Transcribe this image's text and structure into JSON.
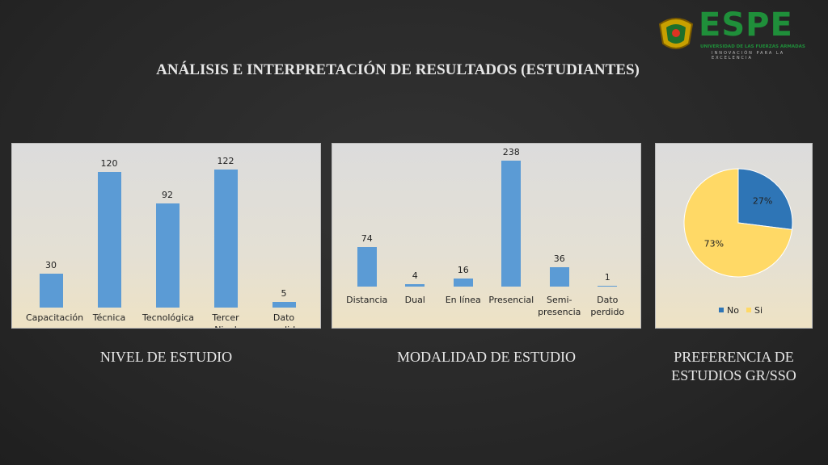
{
  "title": "ANÁLISIS E INTERPRETACIÓN DE RESULTADOS (ESTUDIANTES)",
  "logo": {
    "name": "ESPE",
    "subtitle": "UNIVERSIDAD DE LAS FUERZAS ARMADAS",
    "motto": "INNOVACIÓN PARA LA EXCELENCIA"
  },
  "chart_data": [
    {
      "type": "bar",
      "caption": "NIVEL DE ESTUDIO",
      "categories": [
        "Capacitación",
        "Técnica",
        "Tecnológica",
        "Tercer Nivel",
        "Dato perdido"
      ],
      "values": [
        30,
        120,
        92,
        122,
        5
      ],
      "color": "#5b9bd5",
      "ylim": [
        0,
        145
      ]
    },
    {
      "type": "bar",
      "caption": "MODALIDAD DE ESTUDIO",
      "categories": [
        "Distancia",
        "Dual",
        "En línea",
        "Presencial",
        "Semi-presencia",
        "Dato perdido"
      ],
      "values": [
        74,
        4,
        16,
        238,
        36,
        1
      ],
      "color": "#5b9bd5",
      "ylim": [
        0,
        270
      ]
    },
    {
      "type": "pie",
      "caption": "PREFERENCIA DE ESTUDIOS GR/SSO",
      "categories": [
        "No",
        "Si"
      ],
      "values": [
        27,
        73
      ],
      "value_labels": [
        "27%",
        "73%"
      ],
      "colors": [
        "#2e75b6",
        "#ffd966"
      ],
      "legend": "bottom"
    }
  ]
}
